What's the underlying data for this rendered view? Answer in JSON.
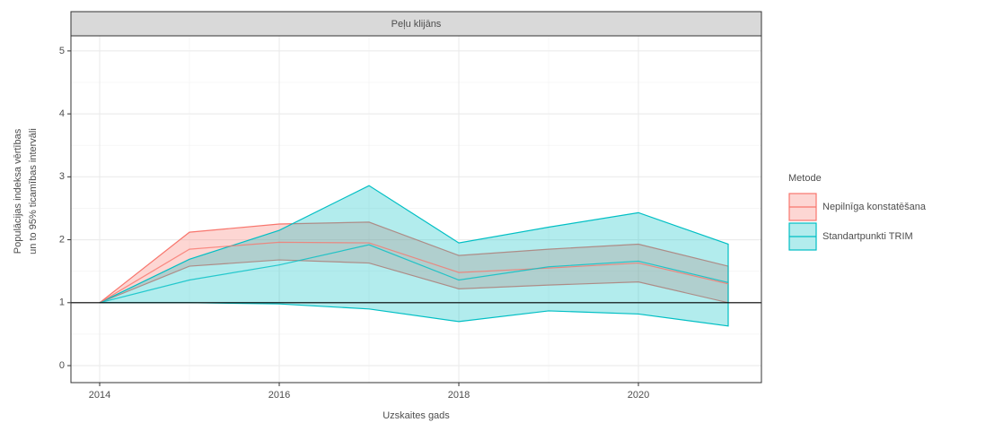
{
  "chart_data": {
    "type": "ribbon",
    "facet": "Peļu klijāns",
    "xlabel": "Uzskaites gads",
    "ylabel": [
      "Populācijas indeksa vērtības",
      "un to 95% ticamības intervāli"
    ],
    "legend_title": "Metode",
    "legend": "right",
    "grid": true,
    "x": [
      2014,
      2015,
      2016,
      2017,
      2018,
      2019,
      2020,
      2021
    ],
    "xlim": [
      2013.68,
      2021.37
    ],
    "xticks": [
      2014,
      2016,
      2018,
      2020
    ],
    "ylim": [
      -0.27,
      5.24
    ],
    "yticks": [
      0,
      1,
      2,
      3,
      4,
      5
    ],
    "hline": 1,
    "series": [
      {
        "name": "Nepilnīga konstatēšana",
        "color": "#F8766D",
        "values": [
          1,
          1.85,
          1.96,
          1.95,
          1.48,
          1.55,
          1.63,
          1.3
        ],
        "lower": [
          1,
          1.58,
          1.68,
          1.63,
          1.22,
          1.28,
          1.33,
          1.0
        ],
        "upper": [
          1,
          2.12,
          2.25,
          2.28,
          1.75,
          1.85,
          1.93,
          1.58
        ]
      },
      {
        "name": "Standartpunkti TRIM",
        "color": "#00BFC4",
        "values": [
          1,
          1.36,
          1.6,
          1.92,
          1.36,
          1.57,
          1.66,
          1.32
        ],
        "lower": [
          1,
          1.0,
          0.98,
          0.9,
          0.7,
          0.87,
          0.82,
          0.63
        ],
        "upper": [
          1,
          1.69,
          2.15,
          2.86,
          1.95,
          2.2,
          2.43,
          1.93
        ]
      }
    ]
  }
}
